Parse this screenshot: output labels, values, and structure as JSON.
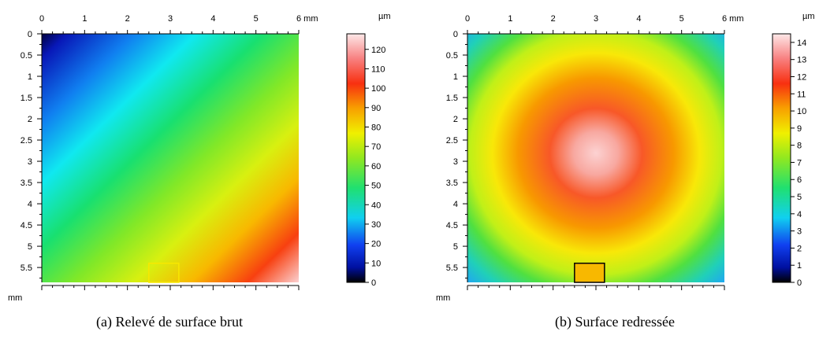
{
  "chart_data": [
    {
      "type": "heatmap",
      "id": "a",
      "caption": "(a) Relevé de surface brut",
      "x_unit": "mm",
      "y_unit": "mm",
      "colorbar_unit": "µm",
      "x_ticks": [
        0,
        1,
        2,
        3,
        4,
        5,
        6
      ],
      "x_tick_labels": [
        "0",
        "1",
        "2",
        "3",
        "4",
        "5",
        "6 mm"
      ],
      "y_ticks": [
        0,
        0.5,
        1,
        1.5,
        2,
        2.5,
        3,
        3.5,
        4,
        4.5,
        5,
        5.5
      ],
      "y_tick_labels": [
        "0",
        "0.5",
        "1",
        "1.5",
        "2",
        "2.5",
        "3",
        "3.5",
        "4",
        "4.5",
        "5",
        "5.5"
      ],
      "xlim": [
        0,
        6
      ],
      "ylim": [
        0,
        5.85
      ],
      "colorbar_ticks": [
        0,
        10,
        20,
        30,
        40,
        50,
        60,
        70,
        80,
        90,
        100,
        110,
        120
      ],
      "colorbar_range": [
        0,
        128
      ],
      "surface": "tilted plane: low (~0 µm) at top-left corner rising to ~125 µm at bottom-right corner",
      "marked_region": {
        "x": [
          2.5,
          3.2
        ],
        "y": [
          5.4,
          5.85
        ]
      }
    },
    {
      "type": "heatmap",
      "id": "b",
      "caption": "(b) Surface redressée",
      "x_unit": "mm",
      "y_unit": "mm",
      "colorbar_unit": "µm",
      "x_ticks": [
        0,
        1,
        2,
        3,
        4,
        5,
        6
      ],
      "x_tick_labels": [
        "0",
        "1",
        "2",
        "3",
        "4",
        "5",
        "6 mm"
      ],
      "y_ticks": [
        0,
        0.5,
        1,
        1.5,
        2,
        2.5,
        3,
        3.5,
        4,
        4.5,
        5,
        5.5
      ],
      "y_tick_labels": [
        "0",
        "0.5",
        "1",
        "1.5",
        "2",
        "2.5",
        "3",
        "3.5",
        "4",
        "4.5",
        "5",
        "5.5"
      ],
      "xlim": [
        0,
        6
      ],
      "ylim": [
        0,
        5.85
      ],
      "colorbar_ticks": [
        0,
        1,
        2,
        3,
        4,
        5,
        6,
        7,
        8,
        9,
        10,
        11,
        12,
        13,
        14
      ],
      "colorbar_range": [
        0,
        14.5
      ],
      "surface": "dome: ~14 µm at centre (x≈3, y≈3) falling to ~3–5 µm at the corners",
      "marked_region": {
        "x": [
          2.5,
          3.2
        ],
        "y": [
          5.4,
          5.85
        ]
      }
    }
  ]
}
